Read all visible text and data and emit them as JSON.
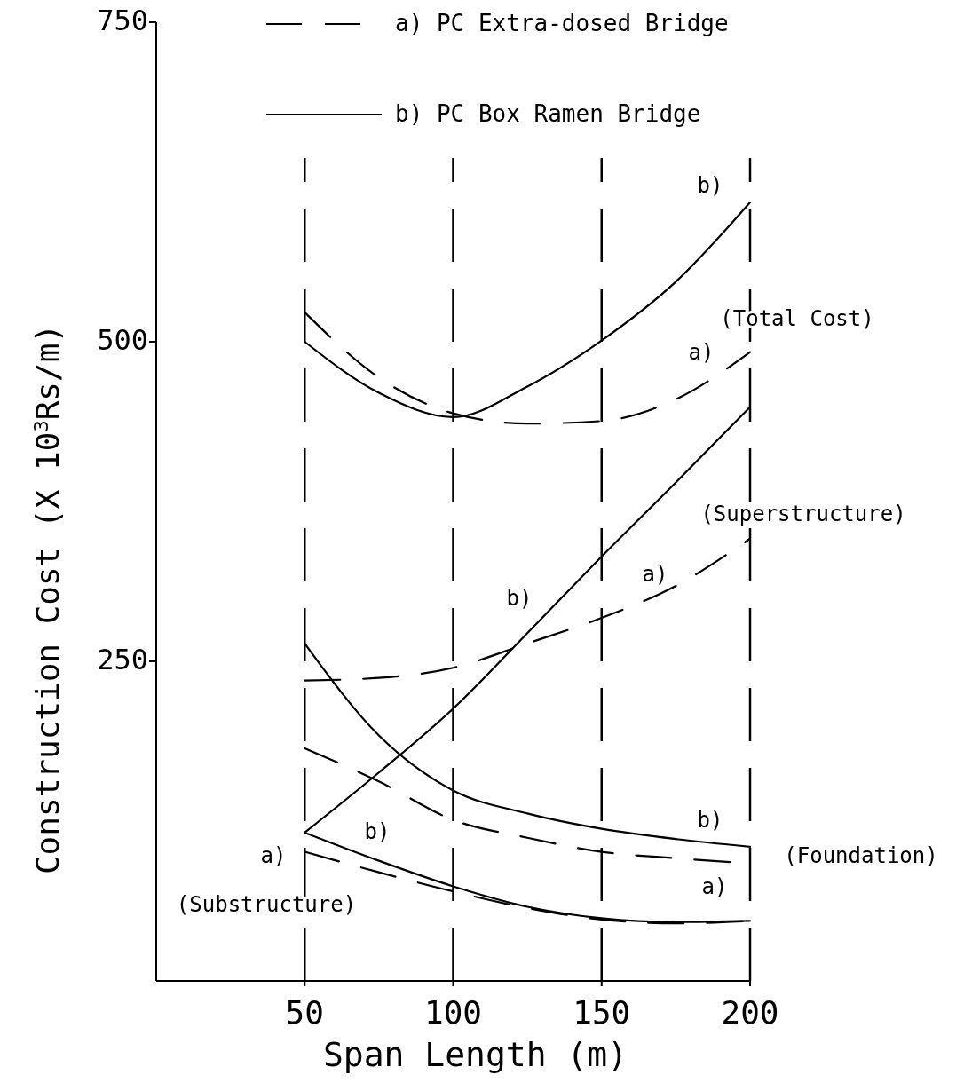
{
  "chart_data": {
    "type": "line",
    "xlabel": "Span Length (m)",
    "ylabel": "Construction Cost  (X 10$^{3}$Rs/m)",
    "x": [
      50,
      75,
      100,
      125,
      150,
      175,
      200
    ],
    "xlim": [
      0,
      200
    ],
    "xticks": [
      50,
      100,
      150,
      200
    ],
    "ylim": [
      0,
      750
    ],
    "yticks": [
      250,
      500,
      750
    ],
    "grid": "x",
    "legend": "top",
    "marker": "none",
    "series": [
      {
        "name": "a) PC Extra-dosed Bridge",
        "color": "#000000",
        "line_style": "dashed",
        "values": [
          523,
          472,
          444,
          436,
          438,
          455,
          492
        ]
      },
      {
        "name": "b) PC Box Ramen Bridge",
        "color": "#000000",
        "line_style": "solid",
        "values": [
          500,
          460,
          441,
          465,
          501,
          547,
          609
        ]
      },
      {
        "color": "#000000",
        "line_style": "dashed",
        "values": [
          235,
          237,
          245,
          264,
          284,
          309,
          346
        ]
      },
      {
        "color": "#000000",
        "line_style": "solid",
        "values": [
          116,
          163,
          213,
          272,
          332,
          390,
          449
        ]
      },
      {
        "color": "#000000",
        "line_style": "dashed",
        "values": [
          182,
          156,
          126,
          112,
          101,
          96,
          92
        ]
      },
      {
        "color": "#000000",
        "line_style": "solid",
        "values": [
          264,
          192,
          149,
          131,
          119,
          111,
          105
        ]
      },
      {
        "color": "#000000",
        "line_style": "dashed",
        "values": [
          101,
          85,
          70,
          57,
          48,
          45,
          47
        ]
      },
      {
        "color": "#000000",
        "line_style": "solid",
        "values": [
          116,
          94,
          74,
          58,
          49,
          46,
          47
        ]
      }
    ],
    "annotations": [
      "b)",
      "(Total Cost)",
      "a)",
      "(Superstructure)",
      "a)",
      "b)",
      "b)",
      "(Foundation)",
      "a)",
      "b)",
      "a)",
      "(Substructure)"
    ]
  }
}
